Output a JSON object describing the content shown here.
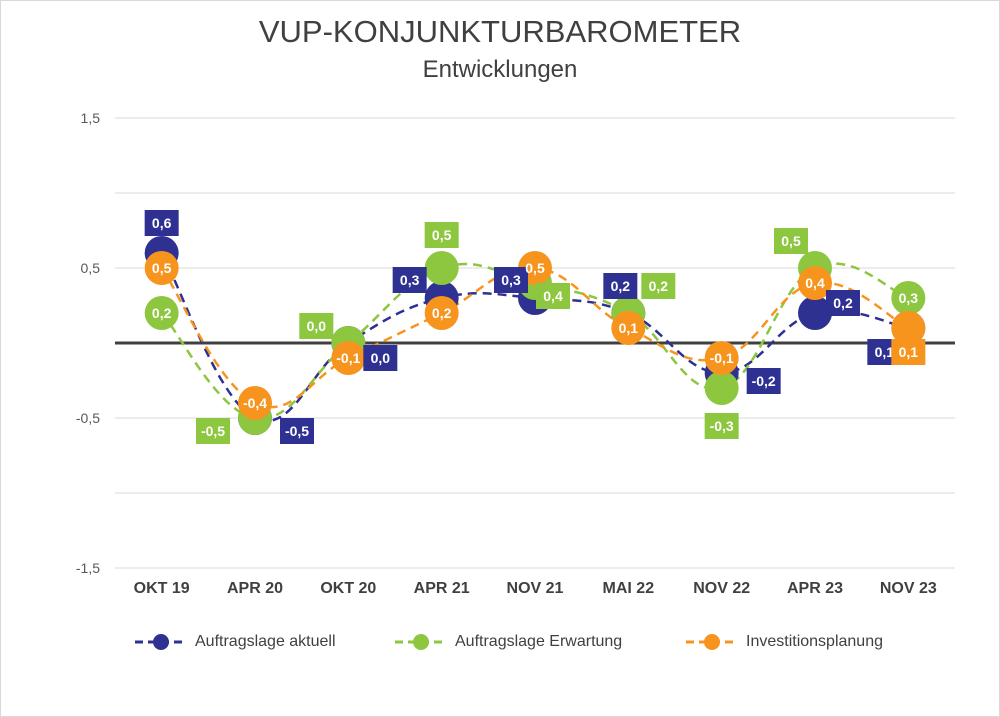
{
  "chart_data": {
    "type": "line",
    "title": "VUP-KONJUNKTURBAROMETER",
    "subtitle": "Entwicklungen",
    "categories": [
      "OKT 19",
      "APR 20",
      "OKT 20",
      "APR 21",
      "NOV 21",
      "MAI 22",
      "NOV 22",
      "APR 23",
      "NOV 23"
    ],
    "ylim": [
      -1.5,
      1.5
    ],
    "yticks": [
      "1,5",
      "0,5",
      "-0,5",
      "-1,5"
    ],
    "grid": true,
    "legend_position": "bottom",
    "series": [
      {
        "name": "Auftragslage aktuell",
        "color": "#2e3192",
        "values": [
          0.6,
          -0.5,
          0.0,
          0.3,
          0.3,
          0.2,
          -0.2,
          0.2,
          0.1
        ],
        "labels": [
          "0,6",
          "-0,5",
          "0,0",
          "0,3",
          "0,3",
          "0,2",
          "-0,2",
          "0,2",
          "0,1"
        ]
      },
      {
        "name": "Auftragslage Erwartung",
        "color": "#8dc63f",
        "values": [
          0.2,
          -0.5,
          0.0,
          0.5,
          0.4,
          0.2,
          -0.3,
          0.5,
          0.3
        ],
        "labels": [
          "0,2",
          "-0,5",
          "0,0",
          "0,5",
          "0,4",
          "0,2",
          "-0,3",
          "0,5",
          "0,3"
        ]
      },
      {
        "name": "Investitionsplanung",
        "color": "#f7941d",
        "values": [
          0.5,
          -0.4,
          -0.1,
          0.2,
          0.5,
          0.1,
          -0.1,
          0.4,
          0.1
        ],
        "labels": [
          "0,5",
          "-0,4",
          "-0,1",
          "0,2",
          "0,5",
          "0,1",
          "-0,1",
          "0,4",
          "0,1"
        ]
      }
    ]
  }
}
